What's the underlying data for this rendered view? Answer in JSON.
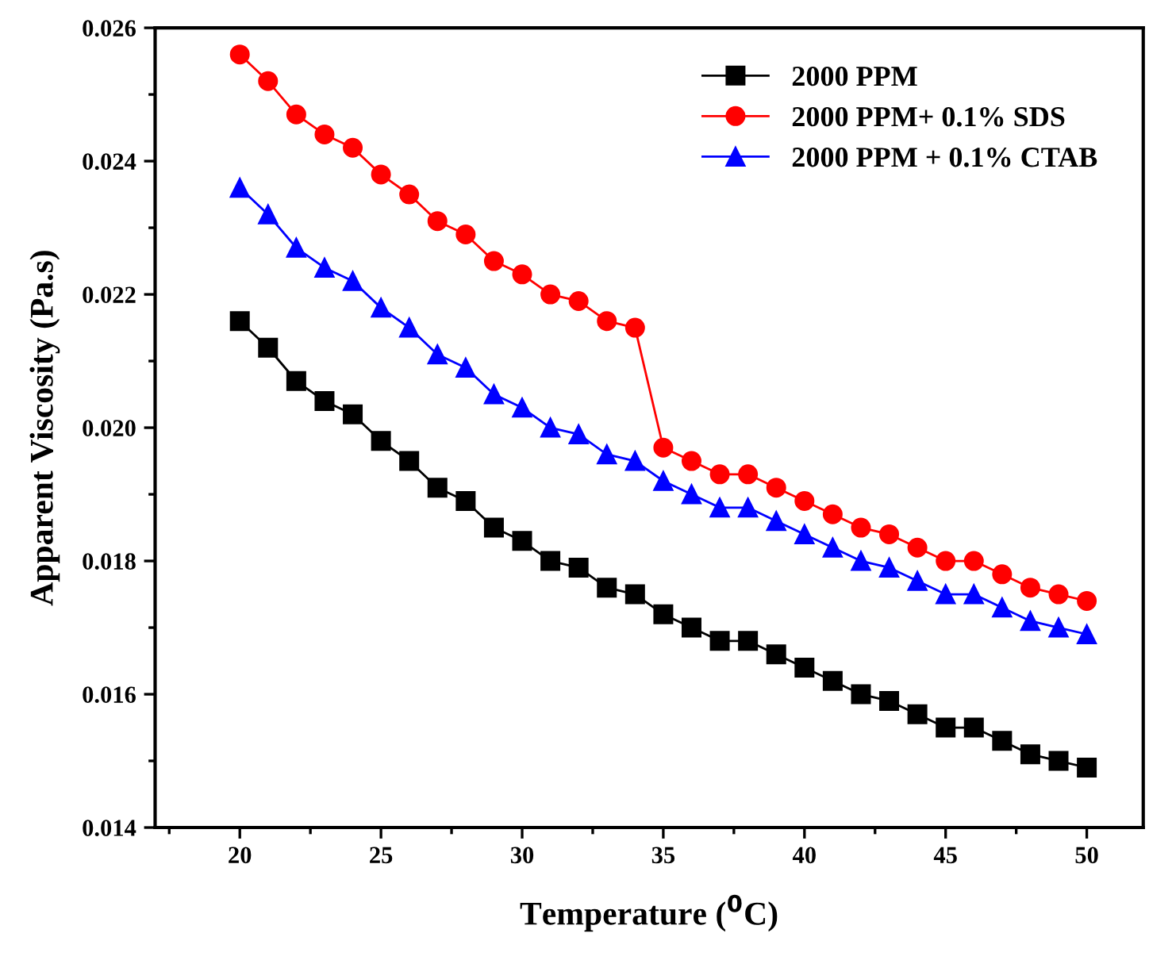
{
  "chart_data": {
    "type": "line",
    "xlabel": "Temperature ($^{0}$C)",
    "ylabel": "Apparent Viscosity (Pa.s)",
    "x": [
      20,
      21,
      22,
      23,
      24,
      25,
      26,
      27,
      28,
      29,
      30,
      31,
      32,
      33,
      34,
      35,
      36,
      37,
      38,
      39,
      40,
      41,
      42,
      43,
      44,
      45,
      46,
      47,
      48,
      49,
      50
    ],
    "series": [
      {
        "name": "2000 PPM",
        "color": "#000000",
        "marker": "square",
        "values": [
          0.0216,
          0.0212,
          0.0207,
          0.0204,
          0.0202,
          0.0198,
          0.0195,
          0.0191,
          0.0189,
          0.0185,
          0.0183,
          0.018,
          0.0179,
          0.0176,
          0.0175,
          0.0172,
          0.017,
          0.0168,
          0.0168,
          0.0166,
          0.0164,
          0.0162,
          0.016,
          0.0159,
          0.0157,
          0.0155,
          0.0155,
          0.0153,
          0.0151,
          0.015,
          0.0149
        ]
      },
      {
        "name": "2000 PPM+ 0.1% SDS",
        "color": "#ff0000",
        "marker": "circle",
        "values": [
          0.0256,
          0.0252,
          0.0247,
          0.0244,
          0.0242,
          0.0238,
          0.0235,
          0.0231,
          0.0229,
          0.0225,
          0.0223,
          0.022,
          0.0219,
          0.0216,
          0.0215,
          0.0197,
          0.0195,
          0.0193,
          0.0193,
          0.0191,
          0.0189,
          0.0187,
          0.0185,
          0.0184,
          0.0182,
          0.018,
          0.018,
          0.0178,
          0.0176,
          0.0175,
          0.0174
        ]
      },
      {
        "name": "2000 PPM + 0.1% CTAB",
        "color": "#0000ff",
        "marker": "triangle",
        "values": [
          0.0236,
          0.0232,
          0.0227,
          0.0224,
          0.0222,
          0.0218,
          0.0215,
          0.0211,
          0.0209,
          0.0205,
          0.0203,
          0.02,
          0.0199,
          0.0196,
          0.0195,
          0.0192,
          0.019,
          0.0188,
          0.0188,
          0.0186,
          0.0184,
          0.0182,
          0.018,
          0.0179,
          0.0177,
          0.0175,
          0.0175,
          0.0173,
          0.0171,
          0.017,
          0.0169
        ]
      }
    ],
    "xlim": [
      17,
      52
    ],
    "ylim": [
      0.014,
      0.026
    ],
    "xticks": [
      20,
      25,
      30,
      35,
      40,
      45,
      50
    ],
    "yticks": [
      {
        "value": 0.014,
        "label": "0.014"
      },
      {
        "value": 0.016,
        "label": "0.016"
      },
      {
        "value": 0.018,
        "label": "0.018"
      },
      {
        "value": 0.02,
        "label": "0.020"
      },
      {
        "value": 0.022,
        "label": "0.022"
      },
      {
        "value": 0.024,
        "label": "0.024"
      },
      {
        "value": 0.026,
        "label": "0.026"
      }
    ],
    "legend": "top right",
    "grid": false,
    "line_style": "solid"
  }
}
